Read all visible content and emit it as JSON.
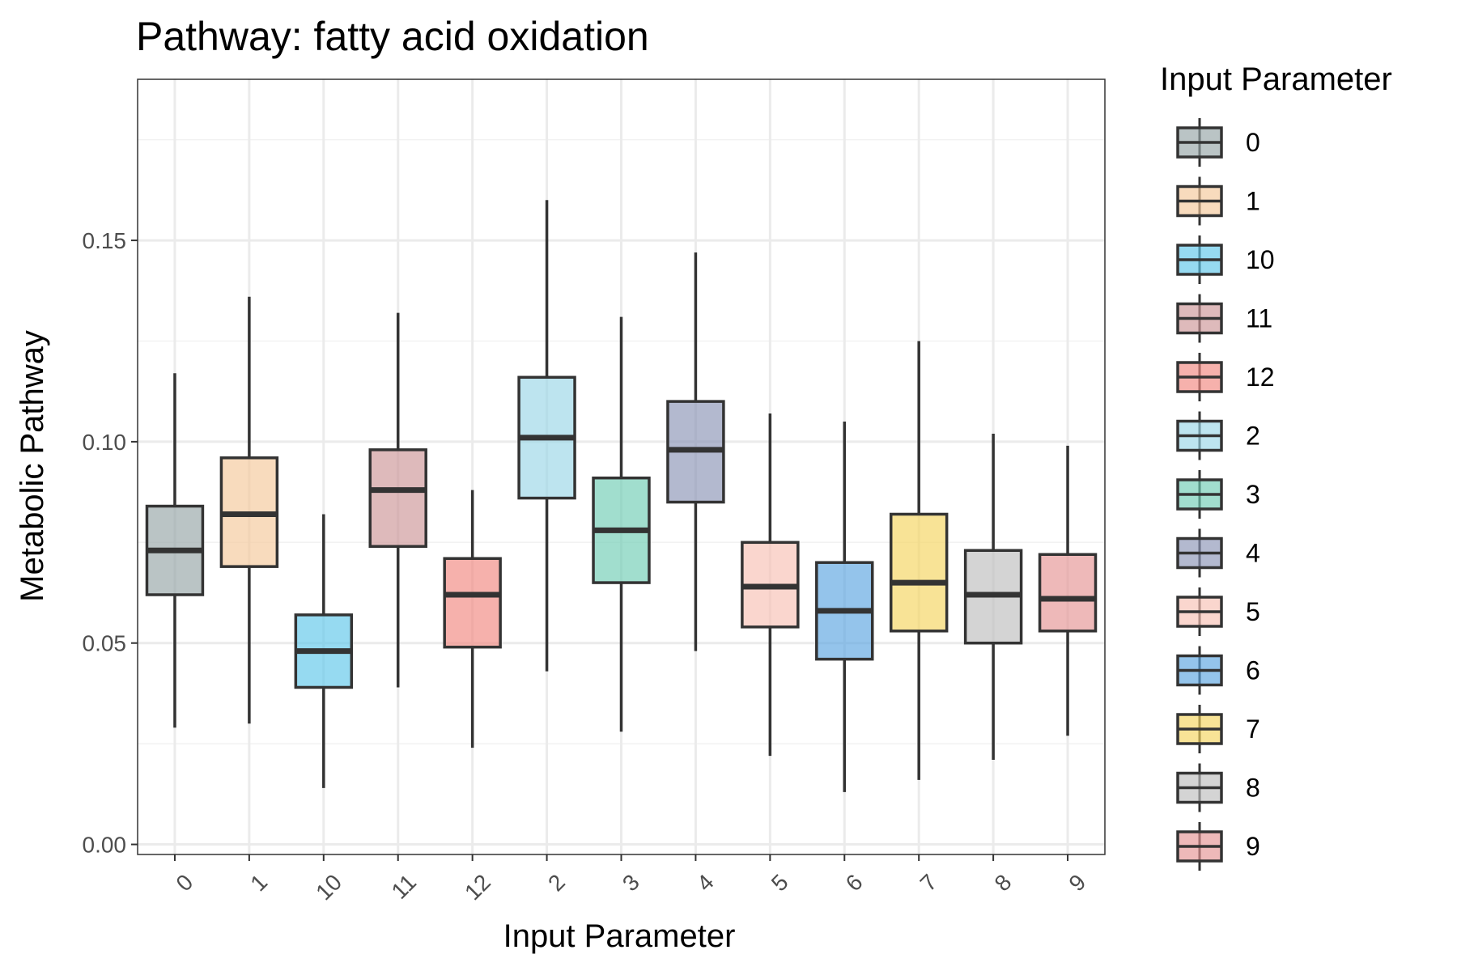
{
  "chart_data": {
    "type": "boxplot",
    "title": "Pathway: fatty acid oxidation",
    "xlabel": "Input Parameter",
    "ylabel": "Metabolic Pathway",
    "ylim": [
      -0.0025,
      0.19
    ],
    "yticks": [
      0.0,
      0.05,
      0.1,
      0.15
    ],
    "ytick_labels": [
      "0.00",
      "0.05",
      "0.10",
      "0.15"
    ],
    "grid": true,
    "legend": {
      "title": "Input Parameter",
      "position": "right"
    },
    "categories": [
      "0",
      "1",
      "10",
      "11",
      "12",
      "2",
      "3",
      "4",
      "5",
      "6",
      "7",
      "8",
      "9"
    ],
    "boxes": [
      {
        "label": "0",
        "whisker_low": 0.029,
        "q1": 0.062,
        "median": 0.073,
        "q3": 0.084,
        "whisker_high": 0.117,
        "color": "#95a5a6"
      },
      {
        "label": "1",
        "whisker_low": 0.03,
        "q1": 0.069,
        "median": 0.082,
        "q3": 0.096,
        "whisker_high": 0.136,
        "color": "#f5c89a"
      },
      {
        "label": "10",
        "whisker_low": 0.014,
        "q1": 0.039,
        "median": 0.048,
        "q3": 0.057,
        "whisker_high": 0.082,
        "color": "#5dc6ea"
      },
      {
        "label": "11",
        "whisker_low": 0.039,
        "q1": 0.074,
        "median": 0.088,
        "q3": 0.098,
        "whisker_high": 0.132,
        "color": "#cc9597"
      },
      {
        "label": "12",
        "whisker_low": 0.024,
        "q1": 0.049,
        "median": 0.062,
        "q3": 0.071,
        "whisker_high": 0.088,
        "color": "#f1877f"
      },
      {
        "label": "2",
        "whisker_low": 0.043,
        "q1": 0.086,
        "median": 0.101,
        "q3": 0.116,
        "whisker_high": 0.16,
        "color": "#9ad6e6"
      },
      {
        "label": "3",
        "whisker_low": 0.028,
        "q1": 0.065,
        "median": 0.078,
        "q3": 0.091,
        "whisker_high": 0.131,
        "color": "#6fcdb4"
      },
      {
        "label": "4",
        "whisker_low": 0.048,
        "q1": 0.085,
        "median": 0.098,
        "q3": 0.11,
        "whisker_high": 0.147,
        "color": "#8a93b6"
      },
      {
        "label": "5",
        "whisker_low": 0.022,
        "q1": 0.054,
        "median": 0.064,
        "q3": 0.075,
        "whisker_high": 0.107,
        "color": "#f7c0b3"
      },
      {
        "label": "6",
        "whisker_low": 0.013,
        "q1": 0.046,
        "median": 0.058,
        "q3": 0.07,
        "whisker_high": 0.105,
        "color": "#5aa5e0"
      },
      {
        "label": "7",
        "whisker_low": 0.016,
        "q1": 0.053,
        "median": 0.065,
        "q3": 0.082,
        "whisker_high": 0.125,
        "color": "#f5d45e"
      },
      {
        "label": "8",
        "whisker_low": 0.021,
        "q1": 0.05,
        "median": 0.062,
        "q3": 0.073,
        "whisker_high": 0.102,
        "color": "#bdbdbd"
      },
      {
        "label": "9",
        "whisker_low": 0.027,
        "q1": 0.053,
        "median": 0.061,
        "q3": 0.072,
        "whisker_high": 0.099,
        "color": "#e59393"
      }
    ]
  }
}
